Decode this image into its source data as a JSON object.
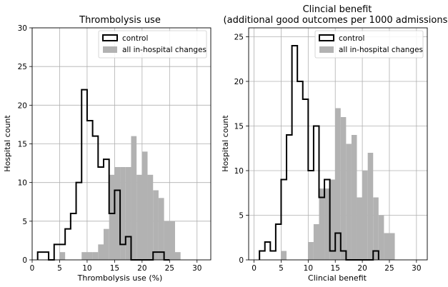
{
  "chart_data": [
    {
      "type": "histogram",
      "title": "Thrombolysis use",
      "xlabel": "Thrombolysis use (%)",
      "ylabel": "Hospital count",
      "xlim": [
        0,
        32.5
      ],
      "ylim": [
        0,
        30
      ],
      "xticks": [
        "0",
        "5",
        "10",
        "15",
        "20",
        "25",
        "30"
      ],
      "yticks": [
        "0",
        "5",
        "10",
        "15",
        "20",
        "25",
        "30"
      ],
      "grid": true,
      "legend_position": "top-right",
      "colors": {
        "control": "#000000",
        "changes": "#b2b2b2"
      },
      "series": [
        {
          "name": "control",
          "style": "step",
          "bin_edges": [
            1,
            3,
            4,
            6,
            7,
            8,
            9,
            10,
            11,
            12,
            13,
            14,
            15,
            16,
            17,
            18,
            19,
            21,
            22,
            24,
            25
          ],
          "counts": [
            1,
            0,
            2,
            4,
            6,
            10,
            22,
            18,
            16,
            12,
            13,
            6,
            9,
            2,
            3,
            0,
            0,
            0,
            1,
            0
          ]
        },
        {
          "name": "all in-hospital changes",
          "style": "filled",
          "bin_edges": [
            5,
            6,
            7,
            8,
            9,
            10,
            11,
            12,
            13,
            14,
            15,
            16,
            17,
            18,
            19,
            20,
            21,
            22,
            23,
            24,
            25,
            26,
            27
          ],
          "counts": [
            1,
            0,
            0,
            0,
            1,
            1,
            1,
            2,
            4,
            11,
            12,
            12,
            12,
            16,
            11,
            14,
            11,
            9,
            8,
            5,
            5,
            1
          ]
        }
      ]
    },
    {
      "type": "histogram",
      "title": "Clincial benefit\n(additional good outcomes per 1000 admissions)",
      "title_lines": [
        "Clincial benefit",
        "(additional good outcomes per 1000 admissions)"
      ],
      "xlabel": "Clincial benefit",
      "ylabel": "Hospital count",
      "xlim": [
        -1,
        32
      ],
      "ylim": [
        0,
        26
      ],
      "xticks": [
        "0",
        "5",
        "10",
        "15",
        "20",
        "25",
        "30"
      ],
      "yticks": [
        "0",
        "5",
        "10",
        "15",
        "20",
        "25"
      ],
      "grid": true,
      "legend_position": "top-right",
      "colors": {
        "control": "#000000",
        "changes": "#b2b2b2"
      },
      "series": [
        {
          "name": "control",
          "style": "step",
          "bin_edges": [
            1,
            2,
            3,
            4,
            5,
            6,
            7,
            8,
            9,
            10,
            11,
            12,
            13,
            14,
            15,
            16,
            17,
            18,
            22,
            23
          ],
          "counts": [
            1,
            2,
            1,
            4,
            9,
            14,
            24,
            20,
            18,
            10,
            15,
            7,
            9,
            1,
            3,
            1,
            0,
            0,
            1
          ]
        },
        {
          "name": "all in-hospital changes",
          "style": "filled",
          "bin_edges": [
            5,
            6,
            10,
            11,
            12,
            13,
            14,
            15,
            16,
            17,
            18,
            19,
            20,
            21,
            22,
            23,
            24,
            25,
            26
          ],
          "counts": [
            1,
            0,
            2,
            4,
            8,
            8,
            9,
            17,
            16,
            13,
            14,
            7,
            10,
            12,
            7,
            5,
            3,
            3
          ]
        }
      ]
    }
  ]
}
